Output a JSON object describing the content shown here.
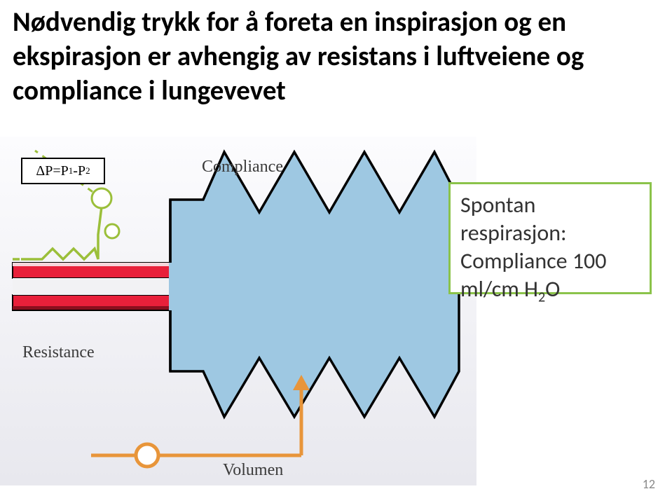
{
  "heading": "Nødvendig trykk for å foreta en inspirasjon og en ekspirasjon er avhengig av resistans i luftveiene og compliance i lungevevet",
  "diagram": {
    "delta_label_html": "ΔP=P<sub>1</sub>-P<sub>2</sub>",
    "label_compliance": "Compliance",
    "label_resistance": "Resistance",
    "label_volumen": "Volumen",
    "colors": {
      "bellows_fill": "#9EC8E2",
      "bellows_stroke": "#000000",
      "tube_fill": "#E8203A",
      "tube_dark": "#8A0F1E",
      "tube_light": "#F6D6DB",
      "spring_green": "#9BBF3A",
      "volume_orange": "#E8953A",
      "bg_gradient_top": "#FCFCFE",
      "bg_gradient_bottom": "#E8E8EE"
    }
  },
  "callout": {
    "line1": "Spontan",
    "line2": "respirasjon:",
    "line3": "Compliance 100",
    "line4_html": "ml/cm H<sub>2</sub>O",
    "border_color": "#8BC34A"
  },
  "page_number": "12"
}
